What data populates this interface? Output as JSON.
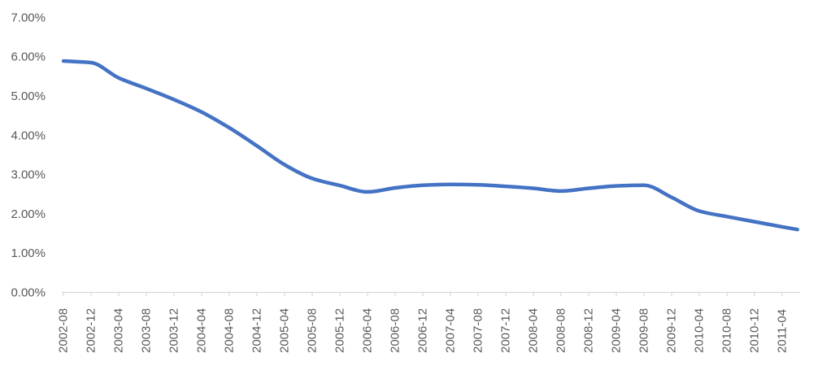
{
  "chart_data": {
    "type": "line",
    "title": "",
    "xlabel": "",
    "ylabel": "",
    "categories": [
      "2002-08",
      "2002-12",
      "2003-04",
      "2003-08",
      "2003-12",
      "2004-04",
      "2004-08",
      "2004-12",
      "2005-04",
      "2005-08",
      "2005-12",
      "2006-04",
      "2006-08",
      "2006-12",
      "2007-04",
      "2007-08",
      "2007-12",
      "2008-04",
      "2008-08",
      "2008-12",
      "2009-04",
      "2009-08",
      "2009-12",
      "2010-04",
      "2010-08",
      "2010-12",
      "2011-04"
    ],
    "values": [
      5.9,
      5.86,
      5.47,
      5.2,
      4.92,
      4.6,
      4.2,
      3.74,
      3.26,
      2.91,
      2.73,
      2.57,
      2.67,
      2.74,
      2.76,
      2.75,
      2.71,
      2.66,
      2.59,
      2.66,
      2.72,
      2.74,
      2.43,
      2.08,
      1.94,
      1.81,
      1.68
    ],
    "line_end_extension": {
      "categories_past_last": 0.55,
      "value": 1.61
    },
    "y_ticks": [
      "0.00%",
      "1.00%",
      "2.00%",
      "3.00%",
      "4.00%",
      "5.00%",
      "6.00%",
      "7.00%"
    ],
    "ylim": [
      0,
      7
    ],
    "y_unit": "%",
    "grid": false,
    "legend": "none",
    "x_tick_label_rotation_deg": 90,
    "series_count": 1
  },
  "style": {
    "line_color": "#4472C4",
    "axis_color": "#D9D9D9",
    "tick_label_color": "#595959",
    "background": "#FFFFFF"
  }
}
